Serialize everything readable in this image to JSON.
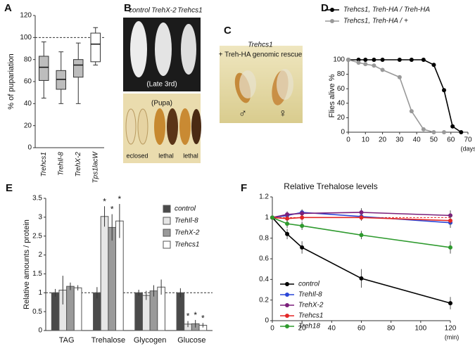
{
  "panel_labels": [
    "A",
    "B",
    "C",
    "D",
    "E",
    "F"
  ],
  "photos": {
    "B": {
      "labels": [
        "control",
        "TrehX-2",
        "Trehcs1"
      ],
      "top_caption": "(Late 3rd)",
      "bottom_caption": "(Pupa)",
      "bottom_labels": [
        "eclosed",
        "lethal",
        "lethal"
      ]
    },
    "C": {
      "title": "Trehcs1",
      "subtitle": "+ Treh-HA genomic rescue",
      "male": "♂",
      "female": "♀"
    }
  },
  "chart_data": [
    {
      "type": "box",
      "ylabel": "% of pupariation",
      "categories": [
        "Trehcs1",
        "TrehIl-8",
        "TrehX-2",
        "Tps1lacW"
      ],
      "values": [
        {
          "min": 45,
          "q1": 61,
          "median": 73,
          "q3": 83,
          "max": 96
        },
        {
          "min": 40,
          "q1": 53,
          "median": 62,
          "q3": 70,
          "max": 87
        },
        {
          "min": 40,
          "q1": 64,
          "median": 75,
          "q3": 80,
          "max": 95
        },
        {
          "min": 75,
          "q1": 78,
          "median": 94,
          "q3": 104,
          "max": 109
        }
      ],
      "colors": [
        "#bdbdbd",
        "#bdbdbd",
        "#bdbdbd",
        "#ffffff"
      ],
      "ylim": [
        0,
        120
      ],
      "yticks": [
        0,
        20,
        40,
        60,
        80,
        100,
        120
      ],
      "reference_line": 100
    },
    {
      "type": "line",
      "ylabel": "Flies alive %",
      "xlabel": "(days)",
      "x": [
        0,
        6,
        10,
        15,
        20,
        30,
        37,
        44,
        50,
        56,
        61,
        66
      ],
      "series": [
        {
          "name": "Trehcs1, Treh-HA / Treh-HA",
          "color": "#000000",
          "values": [
            100,
            100,
            100,
            100,
            100,
            100,
            100,
            100,
            93,
            58,
            8,
            0
          ]
        },
        {
          "name": "Trehcs1, Treh-HA / +",
          "color": "#999999",
          "values": [
            100,
            96,
            94,
            92,
            86,
            76,
            29,
            4,
            0,
            0,
            null,
            null
          ]
        }
      ],
      "xlim": [
        0,
        70
      ],
      "xticks": [
        0,
        10,
        20,
        30,
        40,
        50,
        60,
        70
      ],
      "ylim": [
        0,
        100
      ],
      "yticks": [
        0,
        20,
        40,
        60,
        80,
        100
      ],
      "legend": "top"
    },
    {
      "type": "bar",
      "ylabel": "Relative amounts / protein",
      "categories": [
        "TAG",
        "Trehalose",
        "Glycogen",
        "Glucose"
      ],
      "series": [
        {
          "name": "control",
          "color": "#4a4a4a",
          "values": [
            1,
            1,
            1,
            1
          ],
          "errors": [
            0.1,
            0.15,
            0.08,
            0.12
          ],
          "stars": [
            null,
            null,
            null,
            null
          ]
        },
        {
          "name": "TrehIl-8",
          "color": "#e6e6e6",
          "values": [
            1.07,
            3.02,
            0.93,
            0.17
          ],
          "errors": [
            0.38,
            0.27,
            0.12,
            0.08
          ],
          "stars": [
            null,
            "*",
            null,
            "*"
          ]
        },
        {
          "name": "TrehX-2",
          "color": "#9a9a9a",
          "values": [
            1.17,
            2.73,
            1.05,
            0.18
          ],
          "errors": [
            0.1,
            0.35,
            0.15,
            0.1
          ],
          "stars": [
            null,
            "*",
            null,
            "*"
          ]
        },
        {
          "name": "Trehcs1",
          "color": "#ffffff",
          "values": [
            1.13,
            2.9,
            1.15,
            0.14
          ],
          "errors": [
            0.07,
            0.45,
            0.2,
            0.06
          ],
          "stars": [
            null,
            "*",
            null,
            "*"
          ]
        }
      ],
      "ylim": [
        0,
        3.5
      ],
      "yticks": [
        0,
        0.5,
        1,
        1.5,
        2,
        2.5,
        3,
        3.5
      ],
      "reference_line": 1,
      "legend": "upper right"
    },
    {
      "type": "line",
      "title": "Relative Trehalose levels",
      "xlabel": "(min)",
      "x": [
        0,
        10,
        20,
        60,
        120
      ],
      "series": [
        {
          "name": "control",
          "color": "#000000",
          "values": [
            1,
            0.84,
            0.71,
            0.41,
            0.17
          ],
          "errors": [
            0,
            0.05,
            0.06,
            0.09,
            0.06
          ]
        },
        {
          "name": "TrehIl-8",
          "color": "#2a46d8",
          "values": [
            1,
            1.02,
            1.05,
            1.01,
            0.95
          ],
          "errors": [
            0,
            0.03,
            0.03,
            0.04,
            0.05
          ]
        },
        {
          "name": "TrehX-2",
          "color": "#7b1f7b",
          "values": [
            1,
            1.03,
            1.04,
            1.05,
            1.02
          ],
          "errors": [
            0,
            0.03,
            0.03,
            0.04,
            0.05
          ]
        },
        {
          "name": "Trehcs1",
          "color": "#e32727",
          "values": [
            1,
            0.99,
            1,
            1,
            0.97
          ],
          "errors": [
            0,
            0.03,
            0.03,
            0.03,
            0.05
          ]
        },
        {
          "name": "Treh18",
          "color": "#2e9a2e",
          "values": [
            1,
            0.94,
            0.92,
            0.83,
            0.71
          ],
          "errors": [
            0,
            0.04,
            0.04,
            0.04,
            0.06
          ]
        }
      ],
      "xlim": [
        0,
        120
      ],
      "xticks": [
        0,
        20,
        40,
        60,
        80,
        100,
        120
      ],
      "ylim": [
        0,
        1.2
      ],
      "yticks": [
        0,
        0.2,
        0.4,
        0.6,
        0.8,
        1,
        1.2
      ],
      "reference_line": 1,
      "legend": "lower left"
    }
  ]
}
